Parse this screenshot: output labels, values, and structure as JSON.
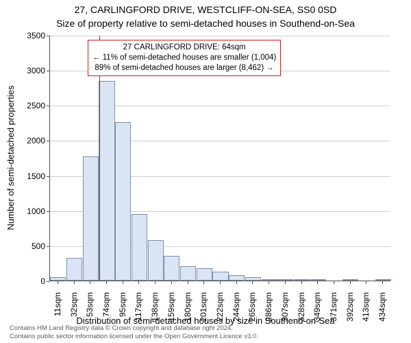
{
  "title1": "27, CARLINGFORD DRIVE, WESTCLIFF-ON-SEA, SS0 0SD",
  "title2": "Size of property relative to semi-detached houses in Southend-on-Sea",
  "ylabel": "Number of semi-detached properties",
  "xlabel": "Distribution of semi-detached houses by size in Southend-on-Sea",
  "footer1": "Contains HM Land Registry data © Crown copyright and database right 2024.",
  "footer2": "Contains public sector information licensed under the Open Government Licence v3.0.",
  "chart": {
    "type": "histogram",
    "ylim": [
      0,
      3500
    ],
    "ytick_step": 500,
    "background_color": "#ffffff",
    "grid_color": "#cfcfcf",
    "axis_color": "#4f4f4f",
    "bar_fill": "#dbe4f4",
    "bar_stroke": "#7e8fa8",
    "refline_color": "#d11919",
    "annotation_border": "#d11919",
    "bar_width_ratio": 0.98,
    "categories": [
      "11sqm",
      "32sqm",
      "53sqm",
      "74sqm",
      "95sqm",
      "117sqm",
      "138sqm",
      "159sqm",
      "180sqm",
      "201sqm",
      "222sqm",
      "244sqm",
      "265sqm",
      "286sqm",
      "307sqm",
      "328sqm",
      "349sqm",
      "371sqm",
      "392sqm",
      "413sqm",
      "434sqm"
    ],
    "values": [
      50,
      320,
      1770,
      2850,
      2260,
      950,
      580,
      350,
      210,
      180,
      130,
      80,
      50,
      10,
      10,
      10,
      10,
      0,
      10,
      0,
      10
    ],
    "reference": {
      "value_sqm": 64,
      "index_position": 2.52
    },
    "annotation": {
      "line1": "27 CARLINGFORD DRIVE: 64sqm",
      "line2": "← 11% of semi-detached houses are smaller (1,004)",
      "line3": "89% of semi-detached houses are larger (8,462) →"
    },
    "fontsize_title": 14,
    "fontsize_label": 13,
    "fontsize_tick": 12,
    "fontsize_annotation": 11.5
  }
}
